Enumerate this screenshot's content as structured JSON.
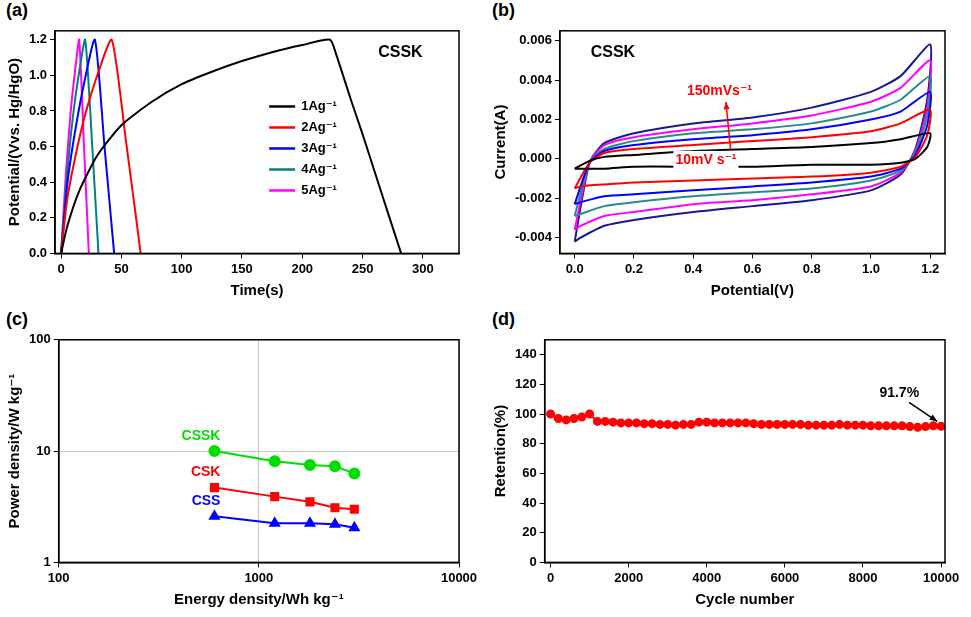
{
  "chart_data": [
    {
      "type": "line",
      "panel_label": "(a)",
      "x_label": "Time(s)",
      "y_label": "Potential/(Vvs. Hg/HgO)",
      "annotations": [
        "CSSK"
      ],
      "legend": "right",
      "grid": false,
      "marker": "none",
      "line_style": "solid",
      "xlim": [
        -5,
        330
      ],
      "xticks": [
        0,
        50,
        100,
        150,
        200,
        250,
        300
      ],
      "ylim": [
        0,
        1.25
      ],
      "yticks": [
        {
          "value": 0,
          "label": "0.0"
        },
        {
          "value": 0.2,
          "label": "0.2"
        },
        {
          "value": 0.4,
          "label": "0.4"
        },
        {
          "value": 0.6,
          "label": "0.6"
        },
        {
          "value": 0.8,
          "label": "0.8"
        },
        {
          "value": 1.0,
          "label": "1.0"
        },
        {
          "value": 1.2,
          "label": "1.2"
        }
      ],
      "series": [
        {
          "name": "1Ag⁻¹",
          "color": "#000000",
          "x": [
            0,
            5,
            15,
            30,
            50,
            75,
            100,
            125,
            150,
            175,
            200,
            223,
            228,
            240,
            250,
            260,
            270,
            282
          ],
          "values": [
            0,
            0.15,
            0.35,
            0.55,
            0.72,
            0.85,
            0.95,
            1.02,
            1.08,
            1.13,
            1.17,
            1.2,
            1.12,
            0.87,
            0.67,
            0.46,
            0.25,
            0
          ]
        },
        {
          "name": "2Ag⁻¹",
          "color": "#ff0000",
          "x": [
            0,
            5,
            12,
            20,
            30,
            42,
            54,
            66
          ],
          "values": [
            0,
            0.3,
            0.55,
            0.78,
            1.0,
            1.2,
            0.62,
            0
          ]
        },
        {
          "name": "3Ag⁻¹",
          "color": "#0000ff",
          "x": [
            0,
            5,
            10,
            18,
            28,
            36,
            44
          ],
          "values": [
            0,
            0.38,
            0.62,
            0.92,
            1.2,
            0.6,
            0
          ]
        },
        {
          "name": "4Ag⁻¹",
          "color": "#008080",
          "x": [
            0,
            5,
            10,
            15,
            20,
            26,
            31
          ],
          "values": [
            0,
            0.45,
            0.78,
            1.02,
            1.2,
            0.58,
            0
          ]
        },
        {
          "name": "5Ag⁻¹",
          "color": "#ff00ff",
          "x": [
            0,
            4,
            8,
            12,
            15,
            19,
            23
          ],
          "values": [
            0,
            0.45,
            0.8,
            1.05,
            1.2,
            0.6,
            0
          ]
        }
      ]
    },
    {
      "type": "line",
      "panel_label": "(b)",
      "x_label": "Potential(V)",
      "y_label": "Current(A)",
      "annotations": [
        "CSSK",
        "150mVs⁻¹",
        "10mV s⁻¹"
      ],
      "grid": false,
      "marker": "none",
      "line_style": "solid",
      "xlim": [
        -0.05,
        1.25
      ],
      "xticks": [
        {
          "value": 0,
          "label": "0.0"
        },
        {
          "value": 0.2,
          "label": "0.2"
        },
        {
          "value": 0.4,
          "label": "0.4"
        },
        {
          "value": 0.6,
          "label": "0.6"
        },
        {
          "value": 0.8,
          "label": "0.8"
        },
        {
          "value": 1.0,
          "label": "1.0"
        },
        {
          "value": 1.2,
          "label": "1.2"
        }
      ],
      "ylim": [
        -0.0048,
        0.0065
      ],
      "yticks": [
        {
          "value": -0.004,
          "label": "-0.004"
        },
        {
          "value": -0.002,
          "label": "-0.002"
        },
        {
          "value": 0,
          "label": "0.000"
        },
        {
          "value": 0.002,
          "label": "0.002"
        },
        {
          "value": 0.004,
          "label": "0.004"
        },
        {
          "value": 0.006,
          "label": "0.006"
        }
      ],
      "x": [
        0,
        0.05,
        0.1,
        0.2,
        0.4,
        0.6,
        0.8,
        1.0,
        1.1,
        1.2,
        1.19,
        1.15,
        1.1,
        1.0,
        0.8,
        0.6,
        0.4,
        0.2,
        0.1,
        0.02,
        0
      ],
      "series": [
        {
          "color": "#000000",
          "values": [
            -0.0005,
            -0.0001,
            0.0001,
            0.0002,
            0.0004,
            0.0005,
            0.0006,
            0.0008,
            0.001,
            0.0013,
            0.0006,
            0.0,
            -0.0002,
            -0.0003,
            -0.0003,
            -0.0004,
            -0.0004,
            -0.0004,
            -0.0005,
            -0.0005,
            -0.0005
          ]
        },
        {
          "color": "#ff0000",
          "values": [
            -0.0015,
            -0.0002,
            0.0003,
            0.0005,
            0.0007,
            0.0009,
            0.0011,
            0.0014,
            0.0018,
            0.0025,
            0.0012,
            0.0001,
            -0.0004,
            -0.0007,
            -0.0009,
            -0.001,
            -0.0011,
            -0.0012,
            -0.0013,
            -0.0014,
            -0.0015
          ]
        },
        {
          "color": "#0000ff",
          "values": [
            -0.0023,
            -0.0002,
            0.0004,
            0.0007,
            0.001,
            0.0012,
            0.0015,
            0.002,
            0.0024,
            0.0034,
            0.0017,
            0.0002,
            -0.0005,
            -0.0009,
            -0.0012,
            -0.0014,
            -0.0016,
            -0.0018,
            -0.0019,
            -0.0022,
            -0.0023
          ]
        },
        {
          "color": "#2a8a8a",
          "values": [
            -0.0029,
            -0.0002,
            0.0005,
            0.0009,
            0.0013,
            0.0015,
            0.0018,
            0.0024,
            0.003,
            0.0042,
            0.0022,
            0.0003,
            -0.0006,
            -0.0011,
            -0.0015,
            -0.0017,
            -0.0019,
            -0.0022,
            -0.0024,
            -0.0028,
            -0.0029
          ]
        },
        {
          "color": "#ff00ff",
          "values": [
            -0.0036,
            -0.0002,
            0.0007,
            0.0011,
            0.0015,
            0.0018,
            0.0022,
            0.0029,
            0.0036,
            0.005,
            0.0026,
            0.0004,
            -0.0007,
            -0.0014,
            -0.0018,
            -0.0021,
            -0.0023,
            -0.0027,
            -0.0029,
            -0.0034,
            -0.0036
          ]
        },
        {
          "color": "#1a1a8c",
          "values": [
            -0.0042,
            -0.0002,
            0.0008,
            0.0013,
            0.0018,
            0.0021,
            0.0026,
            0.0034,
            0.0042,
            0.0058,
            0.003,
            0.0005,
            -0.0008,
            -0.0016,
            -0.0021,
            -0.0024,
            -0.0027,
            -0.0031,
            -0.0034,
            -0.004,
            -0.0042
          ]
        }
      ]
    },
    {
      "type": "line",
      "panel_label": "(c)",
      "x_label": "Energy density/Wh kg⁻¹",
      "y_label": "Power density/W kg⁻¹",
      "log": true,
      "grid": true,
      "line_style": "solid",
      "xlim": [
        100,
        10000
      ],
      "xticks": [
        100,
        1000,
        10000
      ],
      "ylim": [
        1,
        100
      ],
      "yticks": [
        1,
        10,
        100
      ],
      "series": [
        {
          "name": "CSSK",
          "color": "#00dd00",
          "marker": "circle",
          "x": [
            600,
            1200,
            1800,
            2400,
            3000
          ],
          "values": [
            10,
            8.1,
            7.5,
            7.3,
            6.3
          ]
        },
        {
          "name": "CSK",
          "color": "#ff0000",
          "marker": "square",
          "x": [
            600,
            1200,
            1800,
            2400,
            3000
          ],
          "values": [
            4.7,
            3.9,
            3.5,
            3.1,
            3.0
          ]
        },
        {
          "name": "CSS",
          "color": "#0000ff",
          "marker": "triangle",
          "x": [
            600,
            1200,
            1800,
            2400,
            3000
          ],
          "values": [
            2.6,
            2.25,
            2.25,
            2.2,
            2.05
          ]
        }
      ]
    },
    {
      "type": "line",
      "panel_label": "(d)",
      "x_label": "Cycle number",
      "y_label": "Retention(%)",
      "annotations": [
        "91.7%"
      ],
      "grid": false,
      "marker": "circle",
      "line_style": "solid",
      "color": "#ff0000",
      "xlim": [
        -150,
        10100
      ],
      "xticks": [
        0,
        2000,
        4000,
        6000,
        8000,
        10000
      ],
      "ylim": [
        0,
        150
      ],
      "yticks": [
        0,
        20,
        40,
        60,
        80,
        100,
        120,
        140
      ],
      "x": [
        0,
        200,
        400,
        600,
        800,
        1000,
        1200,
        1400,
        1600,
        1800,
        2000,
        2200,
        2400,
        2600,
        2800,
        3000,
        3200,
        3400,
        3600,
        3800,
        4000,
        4200,
        4400,
        4600,
        4800,
        5000,
        5200,
        5400,
        5600,
        5800,
        6000,
        6200,
        6400,
        6600,
        6800,
        7000,
        7200,
        7400,
        7600,
        7800,
        8000,
        8200,
        8400,
        8600,
        8800,
        9000,
        9200,
        9400,
        9600,
        9800,
        10000
      ],
      "values": [
        100,
        97,
        96,
        97,
        98,
        100,
        95,
        95,
        94.5,
        94,
        94,
        94,
        93.5,
        93.5,
        93,
        93,
        92.5,
        93,
        93,
        94.5,
        94.5,
        94,
        94,
        94,
        94,
        94,
        93.5,
        93,
        93,
        93,
        93,
        93,
        93,
        92.5,
        92.5,
        92.5,
        92.5,
        93,
        92.5,
        92.5,
        92.5,
        92,
        92,
        92,
        92,
        92,
        91.5,
        91,
        91.5,
        92,
        91.7
      ]
    }
  ]
}
